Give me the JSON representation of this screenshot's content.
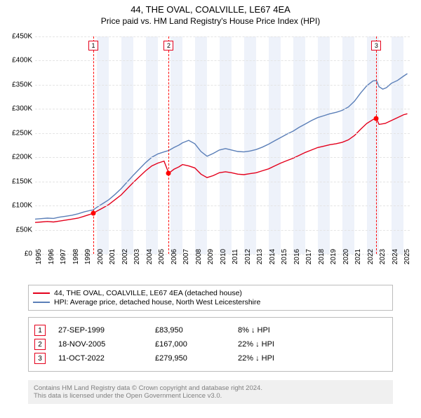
{
  "title": "44, THE OVAL, COALVILLE, LE67 4EA",
  "subtitle": "Price paid vs. HM Land Registry's House Price Index (HPI)",
  "chart": {
    "type": "line",
    "background_color": "#ffffff",
    "grid_color": "#e4e4e4",
    "shade_color": "#eef2fa",
    "ylim": [
      0,
      450000
    ],
    "ytick_step": 50000,
    "yticklabels": [
      "£0",
      "£50K",
      "£100K",
      "£150K",
      "£200K",
      "£250K",
      "£300K",
      "£350K",
      "£400K",
      "£450K"
    ],
    "xlim": [
      1995,
      2025.5
    ],
    "xticks": [
      1995,
      1996,
      1997,
      1998,
      1999,
      2000,
      2001,
      2002,
      2003,
      2004,
      2005,
      2006,
      2007,
      2008,
      2009,
      2010,
      2011,
      2012,
      2013,
      2014,
      2015,
      2016,
      2017,
      2018,
      2019,
      2020,
      2021,
      2022,
      2023,
      2024,
      2025
    ],
    "shaded_year_ranges": [
      [
        2000,
        2001
      ],
      [
        2002,
        2003
      ],
      [
        2004,
        2005
      ],
      [
        2006,
        2007
      ],
      [
        2008,
        2009
      ],
      [
        2010,
        2011
      ],
      [
        2012,
        2013
      ],
      [
        2014,
        2015
      ],
      [
        2016,
        2017
      ],
      [
        2018,
        2019
      ],
      [
        2020,
        2021
      ],
      [
        2022,
        2023
      ],
      [
        2024,
        2025
      ]
    ],
    "series": [
      {
        "name": "price_paid",
        "label": "44, THE OVAL, COALVILLE, LE67 4EA (detached house)",
        "color": "#e4001c",
        "line_width": 1.4,
        "data": [
          [
            1995.0,
            65000
          ],
          [
            1995.5,
            66000
          ],
          [
            1996.0,
            67000
          ],
          [
            1996.5,
            66000
          ],
          [
            1997.0,
            68000
          ],
          [
            1997.5,
            70000
          ],
          [
            1998.0,
            72000
          ],
          [
            1998.5,
            74000
          ],
          [
            1999.0,
            78000
          ],
          [
            1999.5,
            82000
          ],
          [
            1999.74,
            83950
          ],
          [
            2000.0,
            88000
          ],
          [
            2000.5,
            95000
          ],
          [
            2001.0,
            102000
          ],
          [
            2001.5,
            112000
          ],
          [
            2002.0,
            122000
          ],
          [
            2002.5,
            135000
          ],
          [
            2003.0,
            148000
          ],
          [
            2003.5,
            160000
          ],
          [
            2004.0,
            172000
          ],
          [
            2004.5,
            182000
          ],
          [
            2005.0,
            188000
          ],
          [
            2005.5,
            192000
          ],
          [
            2005.88,
            167000
          ],
          [
            2006.3,
            175000
          ],
          [
            2006.7,
            180000
          ],
          [
            2007.0,
            185000
          ],
          [
            2007.5,
            182000
          ],
          [
            2008.0,
            178000
          ],
          [
            2008.5,
            165000
          ],
          [
            2009.0,
            158000
          ],
          [
            2009.5,
            162000
          ],
          [
            2010.0,
            168000
          ],
          [
            2010.5,
            170000
          ],
          [
            2011.0,
            168000
          ],
          [
            2011.5,
            165000
          ],
          [
            2012.0,
            164000
          ],
          [
            2012.5,
            166000
          ],
          [
            2013.0,
            168000
          ],
          [
            2013.5,
            172000
          ],
          [
            2014.0,
            176000
          ],
          [
            2014.5,
            182000
          ],
          [
            2015.0,
            188000
          ],
          [
            2015.5,
            193000
          ],
          [
            2016.0,
            198000
          ],
          [
            2016.5,
            204000
          ],
          [
            2017.0,
            210000
          ],
          [
            2017.5,
            215000
          ],
          [
            2018.0,
            220000
          ],
          [
            2018.5,
            223000
          ],
          [
            2019.0,
            226000
          ],
          [
            2019.5,
            228000
          ],
          [
            2020.0,
            231000
          ],
          [
            2020.5,
            236000
          ],
          [
            2021.0,
            245000
          ],
          [
            2021.5,
            258000
          ],
          [
            2022.0,
            270000
          ],
          [
            2022.5,
            278000
          ],
          [
            2022.78,
            279950
          ],
          [
            2023.0,
            268000
          ],
          [
            2023.5,
            270000
          ],
          [
            2024.0,
            276000
          ],
          [
            2024.5,
            282000
          ],
          [
            2025.0,
            288000
          ],
          [
            2025.3,
            290000
          ]
        ]
      },
      {
        "name": "hpi",
        "label": "HPI: Average price, detached house, North West Leicestershire",
        "color": "#5b7fb8",
        "line_width": 1.4,
        "data": [
          [
            1995.0,
            72000
          ],
          [
            1995.5,
            73000
          ],
          [
            1996.0,
            74000
          ],
          [
            1996.5,
            73500
          ],
          [
            1997.0,
            76000
          ],
          [
            1997.5,
            78000
          ],
          [
            1998.0,
            80000
          ],
          [
            1998.5,
            83000
          ],
          [
            1999.0,
            87000
          ],
          [
            1999.5,
            90000
          ],
          [
            1999.74,
            91000
          ],
          [
            2000.0,
            96000
          ],
          [
            2000.5,
            104000
          ],
          [
            2001.0,
            112000
          ],
          [
            2001.5,
            123000
          ],
          [
            2002.0,
            135000
          ],
          [
            2002.5,
            149000
          ],
          [
            2003.0,
            163000
          ],
          [
            2003.5,
            176000
          ],
          [
            2004.0,
            189000
          ],
          [
            2004.5,
            200000
          ],
          [
            2005.0,
            207000
          ],
          [
            2005.5,
            211000
          ],
          [
            2005.88,
            214000
          ],
          [
            2006.3,
            220000
          ],
          [
            2006.7,
            225000
          ],
          [
            2007.0,
            230000
          ],
          [
            2007.5,
            235000
          ],
          [
            2008.0,
            228000
          ],
          [
            2008.5,
            212000
          ],
          [
            2009.0,
            202000
          ],
          [
            2009.5,
            208000
          ],
          [
            2010.0,
            215000
          ],
          [
            2010.5,
            218000
          ],
          [
            2011.0,
            215000
          ],
          [
            2011.5,
            212000
          ],
          [
            2012.0,
            211000
          ],
          [
            2012.5,
            213000
          ],
          [
            2013.0,
            216000
          ],
          [
            2013.5,
            221000
          ],
          [
            2014.0,
            227000
          ],
          [
            2014.5,
            234000
          ],
          [
            2015.0,
            241000
          ],
          [
            2015.5,
            248000
          ],
          [
            2016.0,
            254000
          ],
          [
            2016.5,
            262000
          ],
          [
            2017.0,
            269000
          ],
          [
            2017.5,
            276000
          ],
          [
            2018.0,
            282000
          ],
          [
            2018.5,
            286000
          ],
          [
            2019.0,
            290000
          ],
          [
            2019.5,
            293000
          ],
          [
            2020.0,
            297000
          ],
          [
            2020.5,
            304000
          ],
          [
            2021.0,
            316000
          ],
          [
            2021.5,
            333000
          ],
          [
            2022.0,
            348000
          ],
          [
            2022.5,
            358000
          ],
          [
            2022.78,
            359000
          ],
          [
            2023.0,
            346000
          ],
          [
            2023.3,
            341000
          ],
          [
            2023.6,
            344000
          ],
          [
            2024.0,
            353000
          ],
          [
            2024.5,
            359000
          ],
          [
            2025.0,
            368000
          ],
          [
            2025.3,
            373000
          ]
        ]
      }
    ],
    "markers": [
      {
        "id": "1",
        "x": 1999.74,
        "y": 83950,
        "date": "27-SEP-1999",
        "price": "£83,950",
        "diff": "8% ↓ HPI"
      },
      {
        "id": "2",
        "x": 2005.88,
        "y": 167000,
        "date": "18-NOV-2005",
        "price": "£167,000",
        "diff": "22% ↓ HPI"
      },
      {
        "id": "3",
        "x": 2022.78,
        "y": 279950,
        "date": "11-OCT-2022",
        "price": "£279,950",
        "diff": "22% ↓ HPI"
      }
    ],
    "marker_box_color": "#e4001c"
  },
  "legend_border_color": "#bcbcbc",
  "footer_bg": "#f0f0f0",
  "footer_line1": "Contains HM Land Registry data © Crown copyright and database right 2024.",
  "footer_line2": "This data is licensed under the Open Government Licence v3.0."
}
